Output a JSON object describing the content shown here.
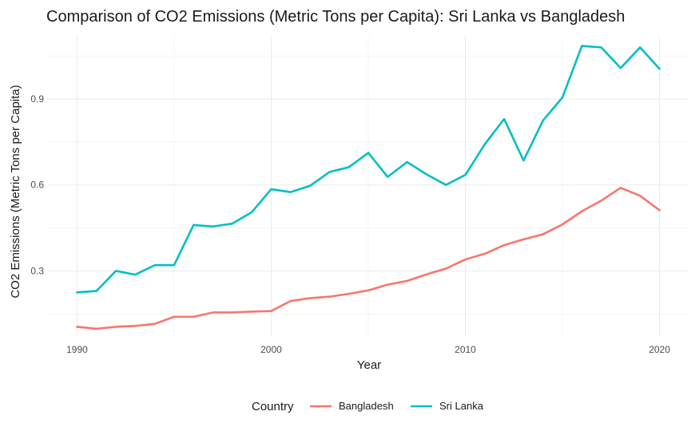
{
  "chart_data": {
    "type": "line",
    "title": "Comparison of CO2 Emissions (Metric Tons per Capita): Sri Lanka vs Bangladesh",
    "xlabel": "Year",
    "ylabel": "CO2 Emissions (Metric Tons per Capita)",
    "xlim": [
      1988.5,
      2021.5
    ],
    "ylim": [
      0.07,
      1.12
    ],
    "x_ticks": [
      1990,
      2000,
      2010,
      2020
    ],
    "y_ticks": [
      0.3,
      0.6,
      0.9
    ],
    "y_tick_labels": [
      "0.3",
      "0.6",
      "0.9"
    ],
    "grid": true,
    "legend_position": "bottom",
    "legend_title": "Country",
    "x": [
      1990,
      1991,
      1992,
      1993,
      1994,
      1995,
      1996,
      1997,
      1998,
      1999,
      2000,
      2001,
      2002,
      2003,
      2004,
      2005,
      2006,
      2007,
      2008,
      2009,
      2010,
      2011,
      2012,
      2013,
      2014,
      2015,
      2016,
      2017,
      2018,
      2019,
      2020
    ],
    "series": [
      {
        "name": "Bangladesh",
        "color": "#F8766D",
        "values": [
          0.105,
          0.098,
          0.105,
          0.108,
          0.115,
          0.14,
          0.14,
          0.155,
          0.155,
          0.158,
          0.16,
          0.195,
          0.205,
          0.21,
          0.22,
          0.232,
          0.252,
          0.265,
          0.288,
          0.308,
          0.34,
          0.36,
          0.39,
          0.41,
          0.428,
          0.462,
          0.508,
          0.545,
          0.59,
          0.562,
          0.512
        ]
      },
      {
        "name": "Sri Lanka",
        "color": "#00BFC4",
        "values": [
          0.225,
          0.23,
          0.3,
          0.287,
          0.32,
          0.32,
          0.46,
          0.455,
          0.465,
          0.505,
          0.585,
          0.575,
          0.597,
          0.645,
          0.662,
          0.712,
          0.628,
          0.68,
          0.637,
          0.6,
          0.635,
          0.742,
          0.83,
          0.685,
          0.825,
          0.905,
          1.085,
          1.08,
          1.008,
          1.08,
          1.005
        ]
      }
    ]
  }
}
